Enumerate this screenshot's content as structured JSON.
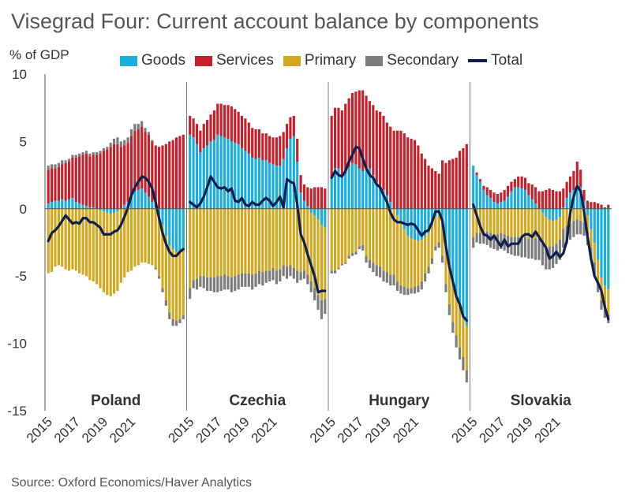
{
  "title": "Visegrad Four: Current account balance by components",
  "y_unit": "% of GDP",
  "source": "Source: Oxford Economics/Haver Analytics",
  "legend": [
    {
      "label": "Goods",
      "color": "#1aaede",
      "kind": "bar"
    },
    {
      "label": "Services",
      "color": "#c8202b",
      "kind": "bar"
    },
    {
      "label": "Primary",
      "color": "#d4a81e",
      "kind": "bar"
    },
    {
      "label": "Secondary",
      "color": "#7b7b7b",
      "kind": "bar"
    },
    {
      "label": "Total",
      "color": "#0f1f4d",
      "kind": "line"
    }
  ],
  "chart_data": {
    "type": "bar",
    "stacked": true,
    "ylim": [
      -15,
      10
    ],
    "yticks": [
      -15,
      -10,
      -5,
      0,
      5,
      10
    ],
    "xtick_labels": [
      "2015",
      "2017",
      "2019",
      "2021"
    ],
    "panels": [
      {
        "name": "Poland",
        "goods": [
          0.4,
          0.5,
          0.6,
          0.6,
          0.7,
          0.6,
          0.7,
          0.8,
          0.5,
          0.4,
          0.3,
          0.2,
          0.1,
          0.1,
          0.0,
          -0.1,
          -0.2,
          -0.3,
          -0.4,
          -0.3,
          -0.2,
          0.0,
          0.3,
          0.5,
          1.0,
          1.3,
          1.4,
          1.5,
          1.2,
          0.9,
          0.5,
          0.1,
          -0.5,
          -1.2,
          -2.0,
          -2.7,
          -3.0,
          -3.2,
          -3.2,
          -3.0
        ],
        "services": [
          2.5,
          2.5,
          2.4,
          2.5,
          2.6,
          2.8,
          2.8,
          3.0,
          3.3,
          3.5,
          3.7,
          3.9,
          3.8,
          3.9,
          4.0,
          4.1,
          4.3,
          4.4,
          4.6,
          4.8,
          4.8,
          4.6,
          4.4,
          4.4,
          4.4,
          4.5,
          4.5,
          4.6,
          4.5,
          4.6,
          4.5,
          4.6,
          4.6,
          4.7,
          4.8,
          5.0,
          5.1,
          5.3,
          5.4,
          5.5
        ],
        "primary": [
          -4.8,
          -4.7,
          -4.3,
          -4.2,
          -4.3,
          -4.5,
          -4.6,
          -4.5,
          -4.6,
          -4.8,
          -4.9,
          -5.0,
          -5.3,
          -5.4,
          -5.6,
          -5.8,
          -6.0,
          -6.1,
          -6.1,
          -6.0,
          -5.9,
          -5.5,
          -5.1,
          -4.7,
          -4.6,
          -4.3,
          -4.2,
          -4.0,
          -4.0,
          -4.1,
          -4.2,
          -4.4,
          -4.5,
          -4.7,
          -4.8,
          -5.0,
          -5.2,
          -5.1,
          -5.0,
          -4.9
        ],
        "secondary": [
          0.3,
          0.3,
          0.3,
          0.3,
          0.3,
          0.2,
          0.2,
          0.2,
          0.2,
          0.2,
          0.2,
          0.2,
          0.2,
          0.2,
          0.2,
          0.2,
          0.2,
          0.2,
          0.3,
          0.4,
          0.5,
          0.4,
          0.4,
          0.4,
          0.5,
          0.5,
          0.4,
          0.4,
          0.3,
          0.2,
          0.1,
          -0.1,
          -0.2,
          -0.3,
          -0.4,
          -0.5,
          -0.5,
          -0.4,
          -0.3,
          -0.3
        ],
        "total": [
          -2.4,
          -1.8,
          -1.6,
          -1.3,
          -0.9,
          -0.5,
          -0.8,
          -1.1,
          -1.0,
          -1.1,
          -0.7,
          -0.7,
          -1.0,
          -1.0,
          -1.2,
          -1.4,
          -1.9,
          -1.9,
          -1.9,
          -1.7,
          -1.6,
          -1.2,
          -0.6,
          0.1,
          1.0,
          1.6,
          2.0,
          2.4,
          2.3,
          2.0,
          1.5,
          0.5,
          -0.7,
          -1.8,
          -2.6,
          -3.2,
          -3.5,
          -3.5,
          -3.2,
          -3.0
        ]
      },
      {
        "name": "Czechia",
        "goods": [
          5.5,
          5.3,
          4.8,
          4.2,
          4.5,
          4.7,
          5.0,
          5.1,
          5.5,
          5.4,
          5.3,
          5.2,
          5.0,
          4.9,
          4.8,
          4.5,
          4.3,
          4.1,
          3.8,
          3.7,
          3.8,
          3.6,
          3.6,
          3.4,
          3.3,
          3.2,
          3.2,
          3.7,
          4.5,
          5.2,
          5.4,
          3.5,
          1.2,
          0.6,
          0.2,
          -0.3,
          -0.5,
          -0.8,
          -1.2,
          -1.4
        ],
        "services": [
          1.4,
          1.4,
          1.5,
          1.6,
          1.8,
          1.9,
          2.0,
          2.2,
          2.3,
          2.4,
          2.4,
          2.5,
          2.6,
          2.5,
          2.4,
          2.4,
          2.4,
          2.3,
          2.2,
          2.2,
          2.1,
          2.0,
          2.0,
          2.0,
          2.0,
          2.1,
          2.2,
          2.0,
          1.8,
          1.6,
          1.5,
          1.7,
          1.3,
          1.2,
          1.4,
          1.5,
          1.6,
          1.6,
          1.6,
          1.5
        ],
        "primary": [
          -5.9,
          -5.3,
          -5.2,
          -5.0,
          -5.0,
          -5.1,
          -5.1,
          -5.1,
          -5.0,
          -5.0,
          -4.9,
          -5.0,
          -5.1,
          -5.0,
          -4.9,
          -4.8,
          -4.8,
          -4.8,
          -4.9,
          -4.8,
          -4.6,
          -4.7,
          -4.6,
          -4.6,
          -4.4,
          -4.6,
          -4.5,
          -4.2,
          -4.3,
          -4.2,
          -4.4,
          -4.6,
          -4.7,
          -4.6,
          -4.9,
          -5.1,
          -5.4,
          -5.6,
          -5.6,
          -5.3
        ],
        "secondary": [
          -0.8,
          -0.6,
          -0.8,
          -0.8,
          -0.9,
          -1.0,
          -1.0,
          -1.1,
          -1.2,
          -1.1,
          -1.1,
          -1.0,
          -1.1,
          -1.1,
          -1.1,
          -1.0,
          -1.0,
          -1.0,
          -1.1,
          -1.0,
          -1.0,
          -1.0,
          -0.9,
          -0.8,
          -0.9,
          -1.0,
          -0.9,
          -0.8,
          -0.9,
          -0.8,
          -0.8,
          -0.9,
          -0.6,
          -0.6,
          -0.7,
          -0.8,
          -0.9,
          -1.1,
          -1.4,
          -1.1
        ],
        "total": [
          0.5,
          0.3,
          0.1,
          0.4,
          0.9,
          1.6,
          2.4,
          2.0,
          1.6,
          1.5,
          1.6,
          1.3,
          1.5,
          0.6,
          0.5,
          0.8,
          0.3,
          0.2,
          0.5,
          0.3,
          0.3,
          0.6,
          0.8,
          0.6,
          0.2,
          0.5,
          0.9,
          0.1,
          2.2,
          2.0,
          1.9,
          0.3,
          -1.9,
          -2.5,
          -3.4,
          -4.2,
          -5.0,
          -6.2,
          -6.1,
          -6.1
        ]
      },
      {
        "name": "Hungary",
        "goods": [
          2.3,
          3.0,
          3.0,
          2.5,
          2.6,
          3.1,
          3.4,
          3.3,
          3.0,
          2.8,
          3.1,
          3.0,
          2.5,
          2.0,
          1.7,
          1.4,
          1.0,
          0.5,
          0.0,
          -0.5,
          -1.0,
          -1.5,
          -2.0,
          -2.2,
          -2.3,
          -2.4,
          -2.3,
          -2.1,
          -1.8,
          -1.2,
          -0.6,
          -0.3,
          -1.2,
          -3.1,
          -4.3,
          -5.5,
          -6.3,
          -7.0,
          -7.9,
          -8.7
        ],
        "services": [
          4.6,
          4.5,
          4.5,
          4.8,
          5.2,
          5.1,
          5.2,
          5.4,
          5.8,
          6.0,
          5.3,
          5.0,
          5.2,
          5.3,
          5.5,
          5.5,
          5.4,
          5.6,
          5.8,
          5.8,
          5.8,
          5.6,
          5.3,
          5.2,
          5.1,
          4.7,
          4.1,
          3.7,
          3.2,
          3.0,
          2.8,
          2.6,
          3.6,
          3.4,
          3.6,
          3.7,
          3.8,
          4.3,
          4.5,
          4.8
        ],
        "primary": [
          -4.6,
          -4.6,
          -4.4,
          -4.1,
          -4.0,
          -3.5,
          -3.3,
          -3.2,
          -2.8,
          -2.7,
          -3.5,
          -3.8,
          -4.0,
          -4.2,
          -4.3,
          -4.6,
          -4.7,
          -4.9,
          -4.9,
          -4.9,
          -4.7,
          -4.3,
          -3.9,
          -3.7,
          -3.5,
          -3.3,
          -3.1,
          -2.7,
          -2.5,
          -2.5,
          -2.2,
          -2.2,
          -2.3,
          -2.5,
          -2.8,
          -2.9,
          -3.1,
          -3.3,
          -3.1,
          -3.3
        ],
        "secondary": [
          -0.2,
          -0.2,
          -0.1,
          -0.1,
          -0.1,
          -0.2,
          -0.2,
          -0.2,
          -0.2,
          -0.4,
          -0.5,
          -0.6,
          -0.7,
          -0.8,
          -0.8,
          -0.8,
          -0.8,
          -0.8,
          -0.8,
          -0.7,
          -0.6,
          -0.6,
          -0.5,
          -0.4,
          -0.5,
          -0.5,
          -0.6,
          -0.6,
          -0.5,
          -0.4,
          -0.3,
          -0.4,
          -0.5,
          -0.6,
          -0.8,
          -0.8,
          -0.9,
          -0.9,
          -1.0,
          -0.9
        ],
        "total": [
          2.3,
          2.8,
          2.5,
          2.4,
          2.8,
          3.5,
          4.0,
          4.6,
          4.5,
          3.7,
          3.0,
          2.5,
          2.3,
          1.8,
          1.6,
          1.0,
          0.5,
          -0.3,
          -0.8,
          -1.0,
          -1.0,
          -1.1,
          -1.2,
          -1.1,
          -1.2,
          -1.6,
          -2.0,
          -1.7,
          -1.6,
          -1.0,
          -0.2,
          -0.2,
          -0.9,
          -2.8,
          -4.3,
          -5.4,
          -6.5,
          -7.1,
          -8.0,
          -8.3
        ]
      },
      {
        "name": "Slovakia",
        "goods": [
          3.2,
          2.5,
          2.0,
          1.4,
          1.0,
          0.8,
          0.5,
          0.4,
          0.5,
          0.6,
          0.9,
          1.3,
          1.6,
          1.6,
          1.5,
          1.4,
          1.0,
          0.7,
          0.4,
          0.0,
          -0.3,
          -0.6,
          -0.8,
          -0.9,
          -0.8,
          -0.6,
          0.1,
          0.8,
          1.2,
          1.4,
          1.8,
          1.6,
          0.6,
          -0.5,
          -1.5,
          -2.5,
          -3.8,
          -5.1,
          -5.7,
          -6.0
        ],
        "services": [
          0.0,
          0.2,
          0.2,
          0.3,
          0.6,
          0.6,
          0.7,
          0.7,
          0.7,
          0.8,
          0.8,
          0.7,
          0.6,
          0.8,
          0.9,
          0.9,
          0.9,
          1.1,
          1.2,
          1.3,
          1.3,
          1.4,
          1.5,
          1.4,
          1.3,
          1.3,
          1.4,
          1.2,
          1.2,
          1.4,
          1.7,
          1.3,
          0.8,
          0.6,
          0.5,
          0.5,
          0.4,
          0.3,
          0.1,
          0.3
        ],
        "primary": [
          -2.1,
          -1.8,
          -1.8,
          -1.7,
          -1.7,
          -1.8,
          -1.9,
          -1.9,
          -1.8,
          -1.9,
          -2.0,
          -2.1,
          -2.1,
          -2.1,
          -2.1,
          -2.1,
          -2.2,
          -2.2,
          -2.2,
          -2.2,
          -2.3,
          -2.2,
          -2.0,
          -1.9,
          -1.8,
          -1.7,
          -1.5,
          -1.3,
          -1.1,
          -0.9,
          -0.8,
          -0.9,
          -1.0,
          -1.2,
          -1.4,
          -1.5,
          -1.6,
          -1.7,
          -1.8,
          -1.9
        ],
        "secondary": [
          -0.8,
          -0.7,
          -0.8,
          -0.9,
          -1.0,
          -1.1,
          -1.1,
          -1.2,
          -1.2,
          -1.2,
          -1.3,
          -1.3,
          -1.4,
          -1.4,
          -1.5,
          -1.5,
          -1.5,
          -1.5,
          -1.6,
          -1.6,
          -1.6,
          -1.7,
          -1.7,
          -1.6,
          -1.5,
          -1.5,
          -1.4,
          -1.3,
          -1.2,
          -1.2,
          -1.1,
          -1.0,
          -1.0,
          -1.0,
          -0.9,
          -0.9,
          -0.8,
          -0.7,
          -0.6,
          -0.6
        ],
        "total": [
          0.3,
          -0.5,
          -1.3,
          -1.9,
          -2.0,
          -2.3,
          -2.0,
          -2.4,
          -2.8,
          -2.3,
          -2.8,
          -2.6,
          -2.6,
          -2.6,
          -2.1,
          -1.9,
          -1.9,
          -2.1,
          -1.7,
          -2.1,
          -2.5,
          -2.9,
          -3.7,
          -3.5,
          -3.2,
          -3.6,
          -3.3,
          -2.4,
          -0.3,
          0.9,
          1.7,
          1.3,
          -0.2,
          -2.1,
          -3.7,
          -5.0,
          -5.5,
          -6.1,
          -7.3,
          -8.2
        ]
      }
    ]
  }
}
